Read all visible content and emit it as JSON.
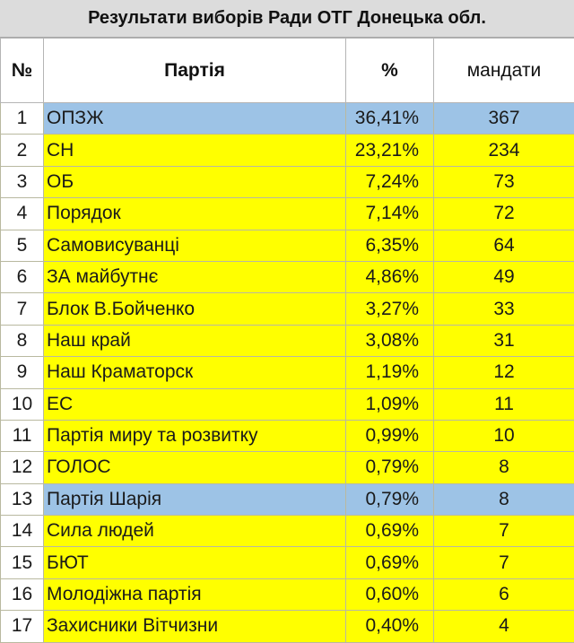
{
  "title": "Результати виборів Ради ОТГ Донецька обл.",
  "headers": {
    "num": "№",
    "party": "Партія",
    "percent": "%",
    "seats": "мандати"
  },
  "colors": {
    "highlight_yellow": "#ffff00",
    "highlight_blue": "#9dc3e6"
  },
  "rows": [
    {
      "num": "1",
      "party": "ОПЗЖ",
      "percent": "36,41%",
      "seats": "367",
      "highlight": "blue"
    },
    {
      "num": "2",
      "party": "СН",
      "percent": "23,21%",
      "seats": "234",
      "highlight": "yellow"
    },
    {
      "num": "3",
      "party": "ОБ",
      "percent": "7,24%",
      "seats": "73",
      "highlight": "yellow"
    },
    {
      "num": "4",
      "party": "Порядок",
      "percent": "7,14%",
      "seats": "72",
      "highlight": "yellow"
    },
    {
      "num": "5",
      "party": "Самовисуванці",
      "percent": "6,35%",
      "seats": "64",
      "highlight": "yellow"
    },
    {
      "num": "6",
      "party": "ЗА майбутнє",
      "percent": "4,86%",
      "seats": "49",
      "highlight": "yellow"
    },
    {
      "num": "7",
      "party": "Блок В.Бойченко",
      "percent": "3,27%",
      "seats": "33",
      "highlight": "yellow"
    },
    {
      "num": "8",
      "party": "Наш край",
      "percent": "3,08%",
      "seats": "31",
      "highlight": "yellow"
    },
    {
      "num": "9",
      "party": "Наш Краматорск",
      "percent": "1,19%",
      "seats": "12",
      "highlight": "yellow"
    },
    {
      "num": "10",
      "party": "ЕС",
      "percent": "1,09%",
      "seats": "11",
      "highlight": "yellow"
    },
    {
      "num": "11",
      "party": "Партія миру та розвитку",
      "percent": "0,99%",
      "seats": "10",
      "highlight": "yellow"
    },
    {
      "num": "12",
      "party": "ГОЛОС",
      "percent": "0,79%",
      "seats": "8",
      "highlight": "yellow"
    },
    {
      "num": "13",
      "party": "Партія Шарія",
      "percent": "0,79%",
      "seats": "8",
      "highlight": "blue"
    },
    {
      "num": "14",
      "party": "Сила людей",
      "percent": "0,69%",
      "seats": "7",
      "highlight": "yellow"
    },
    {
      "num": "15",
      "party": "БЮТ",
      "percent": "0,69%",
      "seats": "7",
      "highlight": "yellow"
    },
    {
      "num": "16",
      "party": "Молодіжна партія",
      "percent": "0,60%",
      "seats": "6",
      "highlight": "yellow"
    },
    {
      "num": "17",
      "party": "Захисники Вітчизни",
      "percent": "0,40%",
      "seats": "4",
      "highlight": "yellow"
    }
  ]
}
